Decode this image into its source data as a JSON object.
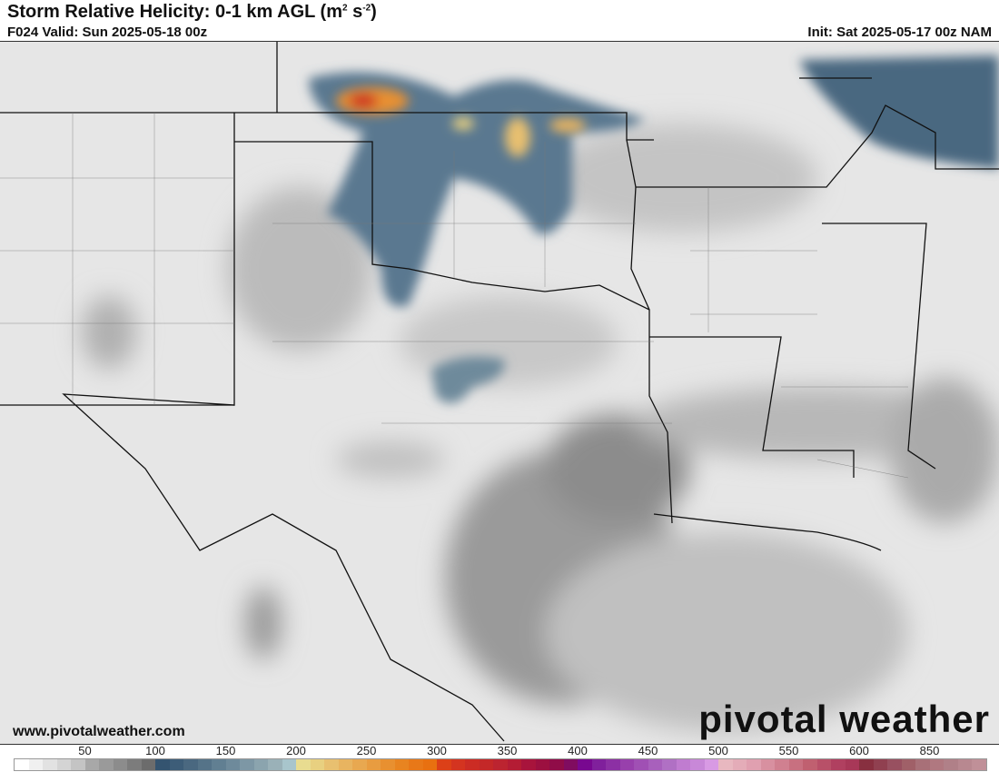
{
  "header": {
    "title": "Storm Relative Helicity: 0-1 km AGL (m",
    "title_sup1": "2",
    "title_mid": " s",
    "title_sup2": "-2",
    "title_end": ")",
    "valid": "F024 Valid: Sun 2025-05-18 00z",
    "init": "Init: Sat 2025-05-17 00z NAM"
  },
  "footer": {
    "website": "www.pivotalweather.com",
    "logo": "pivotal weather"
  },
  "colorbar": {
    "labels": [
      {
        "v": "50",
        "c": 5
      },
      {
        "v": "100",
        "c": 10
      },
      {
        "v": "150",
        "c": 15
      },
      {
        "v": "200",
        "c": 20
      },
      {
        "v": "250",
        "c": 25
      },
      {
        "v": "300",
        "c": 30
      },
      {
        "v": "350",
        "c": 35
      },
      {
        "v": "400",
        "c": 40
      },
      {
        "v": "450",
        "c": 45
      },
      {
        "v": "500",
        "c": 50
      },
      {
        "v": "550",
        "c": 55
      },
      {
        "v": "600",
        "c": 60
      },
      {
        "v": "850",
        "c": 65
      }
    ],
    "colors": [
      "#ffffff",
      "#f0f0f0",
      "#e2e2e2",
      "#d4d4d4",
      "#c4c4c4",
      "#a8a8a8",
      "#9a9a9a",
      "#8c8c8c",
      "#7c7c7c",
      "#6c6c6c",
      "#345470",
      "#3d5d78",
      "#4a6880",
      "#557388",
      "#617f92",
      "#6e8a9b",
      "#7d97a5",
      "#8ba4ae",
      "#9ab1b8",
      "#a8c5cc",
      "#e8dc90",
      "#e8d080",
      "#e8c070",
      "#e8b460",
      "#e8a850",
      "#e89c40",
      "#e89030",
      "#e88420",
      "#e87818",
      "#e87010",
      "#dc4018",
      "#d43420",
      "#cc2c24",
      "#c42828",
      "#bc2430",
      "#b41c34",
      "#a8143c",
      "#9c1040",
      "#900c48",
      "#800c60",
      "#780890",
      "#80209c",
      "#8c30a4",
      "#9840ac",
      "#a050b4",
      "#a860bc",
      "#b070c4",
      "#c07cd0",
      "#c888d8",
      "#d89ae4",
      "#e8b8c0",
      "#e4acb8",
      "#e0a0b0",
      "#d890a0",
      "#d08090",
      "#c87080",
      "#c06070",
      "#b85068",
      "#b04060",
      "#a83858",
      "#883040",
      "#904050",
      "#985060",
      "#a06068",
      "#a87078",
      "#b07880",
      "#b08088",
      "#b88890",
      "#c09098"
    ]
  }
}
